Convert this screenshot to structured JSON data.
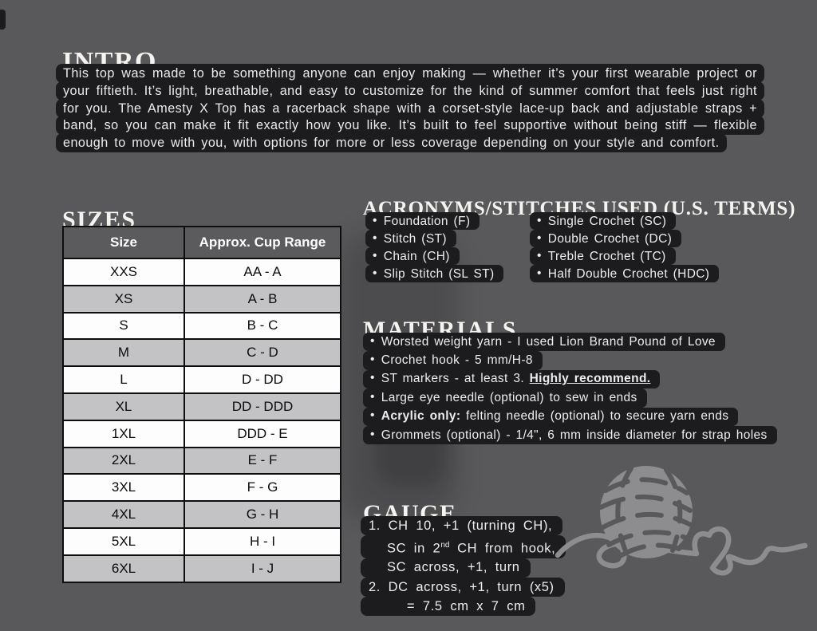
{
  "colors": {
    "page_bg": "#59595b",
    "highlight_bg": "#1c1c1e",
    "heading_text": "#f6f4f0",
    "body_text": "#ececec",
    "table_header_bg": "#5b5b5e",
    "table_row_white": "#fdfdfd",
    "table_row_gray": "#c3c3c5",
    "table_border": "#0e0e0e",
    "yarn_art_gray": "#8d8d90"
  },
  "bullet": "•",
  "intro": {
    "heading": "INTRO",
    "body": "This top was made to be something anyone can enjoy making — whether it’s your first wearable project or your fiftieth. It’s light, breathable, and easy to customize for the kind of summer comfort that feels just right for you. The Amesty X Top has a racerback shape with a corset-style lace-up back and adjustable straps + band, so you can make it fit exactly how you like. It’s built to feel supportive without being stiff — flexible enough to move with you, with options for more or less coverage depending on your style and comfort."
  },
  "sizes": {
    "heading": "SIZES",
    "table": {
      "headers": [
        "Size",
        "Approx. Cup Range"
      ],
      "rows": [
        [
          "XXS",
          "AA - A"
        ],
        [
          "XS",
          "A - B"
        ],
        [
          "S",
          "B - C"
        ],
        [
          "M",
          "C - D"
        ],
        [
          "L",
          "D - DD"
        ],
        [
          "XL",
          "DD - DDD"
        ],
        [
          "1XL",
          "DDD - E"
        ],
        [
          "2XL",
          "E - F"
        ],
        [
          "3XL",
          "F - G"
        ],
        [
          "4XL",
          "G - H"
        ],
        [
          "5XL",
          "H - I"
        ],
        [
          "6XL",
          "I - J"
        ]
      ]
    }
  },
  "acronyms": {
    "heading": "ACRONYMS/STITCHES USED (U.S. TERMS)",
    "left_column": [
      "Foundation (F)",
      "Stitch (ST)",
      "Chain (CH)",
      "Slip Stitch (SL ST)"
    ],
    "right_column": [
      "Single Crochet (SC)",
      "Double Crochet (DC)",
      "Treble Crochet (TC)",
      "Half Double Crochet (HDC)"
    ]
  },
  "materials": {
    "heading": "MATERIALS",
    "items": [
      [
        {
          "t": "Worsted weight yarn - I used Lion Brand Pound of Love"
        }
      ],
      [
        {
          "t": "Crochet hook - 5 mm/H-8"
        }
      ],
      [
        {
          "t": "ST markers - at least 3. "
        },
        {
          "t": "Highly recommend.",
          "b": true,
          "u": true
        }
      ],
      [
        {
          "t": "Large eye needle (optional) to sew in ends"
        }
      ],
      [
        {
          "t": "Acrylic only:",
          "b": true
        },
        {
          "t": " felting needle (optional) to secure yarn ends"
        }
      ],
      [
        {
          "t": "Grommets (optional) - 1/4\", 6 mm inside diameter for strap holes"
        }
      ]
    ]
  },
  "gauge": {
    "heading": "GAUGE",
    "lines": [
      {
        "indent": 0,
        "segments": [
          {
            "t": "1. CH 10, +1 (turning CH),"
          }
        ]
      },
      {
        "indent": 1,
        "segments": [
          {
            "t": "SC in 2"
          },
          {
            "t": "nd",
            "sup": true
          },
          {
            "t": " CH from hook,"
          }
        ]
      },
      {
        "indent": 1,
        "segments": [
          {
            "t": "SC across, +1, turn"
          }
        ]
      },
      {
        "indent": 0,
        "segments": [
          {
            "t": "2. DC across, +1, turn (x5)"
          }
        ]
      },
      {
        "indent": 2,
        "segments": [
          {
            "t": "= 7.5 cm x 7 cm"
          }
        ]
      }
    ]
  },
  "decor": {
    "illustration": "yarn-ball-with-heart-strand"
  }
}
